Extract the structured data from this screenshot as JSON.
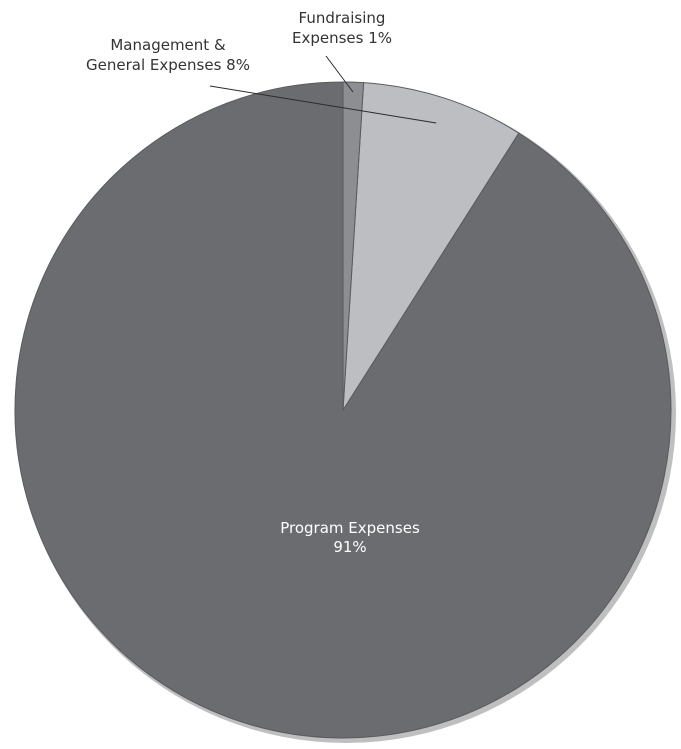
{
  "chart_data": {
    "type": "pie",
    "title": "",
    "slices": [
      {
        "name": "Program Expenses",
        "value": 91,
        "label_lines": [
          "Program Expenses",
          "91%"
        ],
        "color": "#6b6c70",
        "label_style": "inside"
      },
      {
        "name": "Management & General Expenses",
        "value": 8,
        "label_lines": [
          "Management &",
          "General Expenses 8%"
        ],
        "color": "#bdbec1",
        "label_style": "outside"
      },
      {
        "name": "Fundraising Expenses",
        "value": 1,
        "label_lines": [
          "Fundraising",
          "Expenses 1%"
        ],
        "color": "#8d8e92",
        "label_style": "outside"
      }
    ],
    "start_angle": "12 o'clock",
    "direction": "counterclockwise",
    "legend": "none",
    "shadow_color": "#8a8a8a"
  }
}
